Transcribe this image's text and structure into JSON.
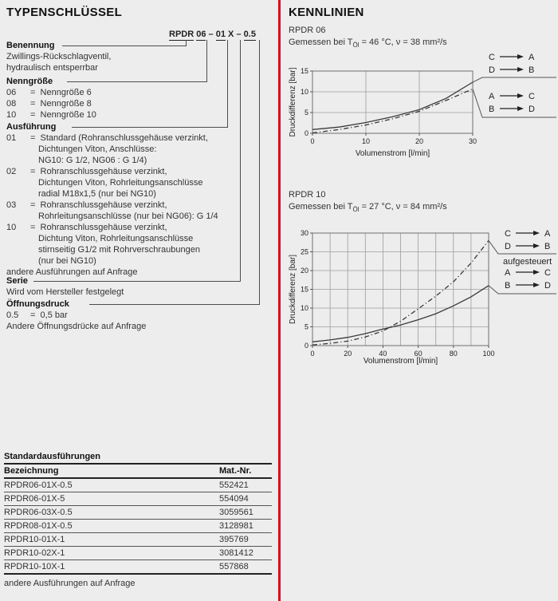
{
  "page": {
    "bg": "#ededed",
    "divider_color": "#e2001a",
    "text_color": "#333333"
  },
  "left": {
    "heading": "TYPENSCHLÜSSEL",
    "type_code": {
      "rpdr": "RPDR",
      "ng": "06",
      "dash1": "–",
      "ausf": "01",
      "serie": "X",
      "dash2": "–",
      "druck": "0.5"
    },
    "benennung": {
      "label": "Benennung",
      "line1": "Zwillings-Rückschlagventil,",
      "line2": "hydraulisch entsperrbar"
    },
    "nenngroesse": {
      "label": "Nenngröße",
      "items": [
        {
          "code": "06",
          "text": "=  Nenngröße 6"
        },
        {
          "code": "08",
          "text": "=  Nenngröße 8"
        },
        {
          "code": "10",
          "text": "=  Nenngröße 10"
        }
      ]
    },
    "ausfuehrung": {
      "label": "Ausführung",
      "items": [
        {
          "code": "01",
          "l1": "=  Standard (Rohranschlussgehäuse verzinkt,",
          "l2": "Dichtungen Viton, Anschlüsse:",
          "l3": "NG10: G 1/2, NG06 : G 1/4)"
        },
        {
          "code": "02",
          "l1": "=  Rohranschlussgehäuse verzinkt,",
          "l2": "Dichtungen Viton, Rohrleitungsanschlüsse",
          "l3": "radial M18x1,5 (nur bei NG10)"
        },
        {
          "code": "03",
          "l1": "=  Rohranschlussgehäuse verzinkt,",
          "l2": "Rohrleitungsanschlüsse (nur bei NG06): G 1/4"
        },
        {
          "code": "10",
          "l1": "=  Rohranschlussgehäuse verzinkt,",
          "l2": "Dichtung Viton, Rohrleitungsanschlüsse",
          "l3": "stirnseitig G1/2 mit Rohrverschraubungen",
          "l4": "(nur bei NG10)"
        }
      ],
      "note": "andere Ausführungen auf Anfrage"
    },
    "serie": {
      "label": "Serie",
      "line1": "Wird vom Hersteller festgelegt"
    },
    "oeffnungsdruck": {
      "label": "Öffnungsdruck",
      "item": {
        "code": "0.5",
        "text": "=  0,5 bar"
      },
      "line2": "Andere Öffnungsdrücke auf Anfrage"
    }
  },
  "table": {
    "title": "Standardausführungen",
    "col1": "Bezeichnung",
    "col2": "Mat.-Nr.",
    "rows": [
      [
        "RPDR06-01X-0.5",
        "552421"
      ],
      [
        "RPDR06-01X-5",
        "554094"
      ],
      [
        "RPDR06-03X-0.5",
        "3059561"
      ],
      [
        "RPDR08-01X-0.5",
        "3128981"
      ],
      [
        "RPDR10-01X-1",
        "395769"
      ],
      [
        "RPDR10-02X-1",
        "3081412"
      ],
      [
        "RPDR10-10X-1",
        "557868"
      ]
    ],
    "note": "andere Ausführungen auf Anfrage"
  },
  "right": {
    "heading": "KENNLINIEN"
  },
  "chart_data": [
    {
      "type": "line",
      "title": "RPDR 06",
      "subtitle": {
        "pre": "Gemessen bei T",
        "sub": "Öl",
        "post": " = 46 °C, ν = 38 mm²/s"
      },
      "xlabel": "Volumenstrom [l/min]",
      "ylabel": "Druckdifferenz [bar]",
      "xlim": [
        0,
        30
      ],
      "ylim": [
        0,
        15
      ],
      "xticks": [
        0,
        10,
        20,
        30
      ],
      "yticks": [
        0,
        5,
        10,
        15
      ],
      "xgrid_step": 10,
      "ygrid_step": 5,
      "grid": true,
      "legend_position": "right",
      "series": [
        {
          "name": "C→A / D→B",
          "style": "solid",
          "x": [
            0,
            5,
            10,
            15,
            20,
            25,
            30
          ],
          "y": [
            0.9,
            1.5,
            2.6,
            4.0,
            5.7,
            8.4,
            12.3
          ]
        },
        {
          "name": "A→C / B→D",
          "style": "dashdot",
          "x": [
            0,
            5,
            10,
            15,
            20,
            25,
            30
          ],
          "y": [
            0.1,
            0.9,
            2.0,
            3.5,
            5.3,
            7.9,
            10.7
          ]
        }
      ],
      "legends": [
        {
          "rows": [
            [
              "C",
              "A"
            ],
            [
              "D",
              "B"
            ]
          ],
          "series": 0,
          "note": ""
        },
        {
          "rows": [
            [
              "A",
              "C"
            ],
            [
              "B",
              "D"
            ]
          ],
          "series": 1,
          "note": ""
        }
      ]
    },
    {
      "type": "line",
      "title": "RPDR 10",
      "subtitle": {
        "pre": "Gemessen bei T",
        "sub": "Öl",
        "post": " = 27 °C, ν = 84 mm²/s"
      },
      "xlabel": "Volumenstrom [l/min]",
      "ylabel": "Druckdifferenz [bar]",
      "xlim": [
        0,
        100
      ],
      "ylim": [
        0,
        30
      ],
      "xticks": [
        0,
        20,
        40,
        60,
        80,
        100
      ],
      "yticks": [
        0,
        5,
        10,
        15,
        20,
        25,
        30
      ],
      "xgrid_step": 10,
      "ygrid_step": 5,
      "grid": true,
      "legend_position": "right",
      "series": [
        {
          "name": "C→A / D→B (aufgesteuert)",
          "style": "dashdot",
          "x": [
            0,
            10,
            20,
            30,
            40,
            50,
            60,
            70,
            80,
            90,
            100
          ],
          "y": [
            0.2,
            0.6,
            1.2,
            2.3,
            3.9,
            6.5,
            9.8,
            13.2,
            17.0,
            22.0,
            28.0
          ]
        },
        {
          "name": "A→C / B→D",
          "style": "solid",
          "x": [
            0,
            10,
            20,
            30,
            40,
            50,
            60,
            70,
            80,
            90,
            100
          ],
          "y": [
            1.0,
            1.5,
            2.2,
            3.2,
            4.4,
            5.5,
            6.9,
            8.5,
            10.6,
            13.0,
            16.0
          ]
        }
      ],
      "legends": [
        {
          "rows": [
            [
              "C",
              "A"
            ],
            [
              "D",
              "B"
            ]
          ],
          "series": 0,
          "note": "aufgesteuert"
        },
        {
          "rows": [
            [
              "A",
              "C"
            ],
            [
              "B",
              "D"
            ]
          ],
          "series": 1,
          "note": ""
        }
      ]
    }
  ]
}
